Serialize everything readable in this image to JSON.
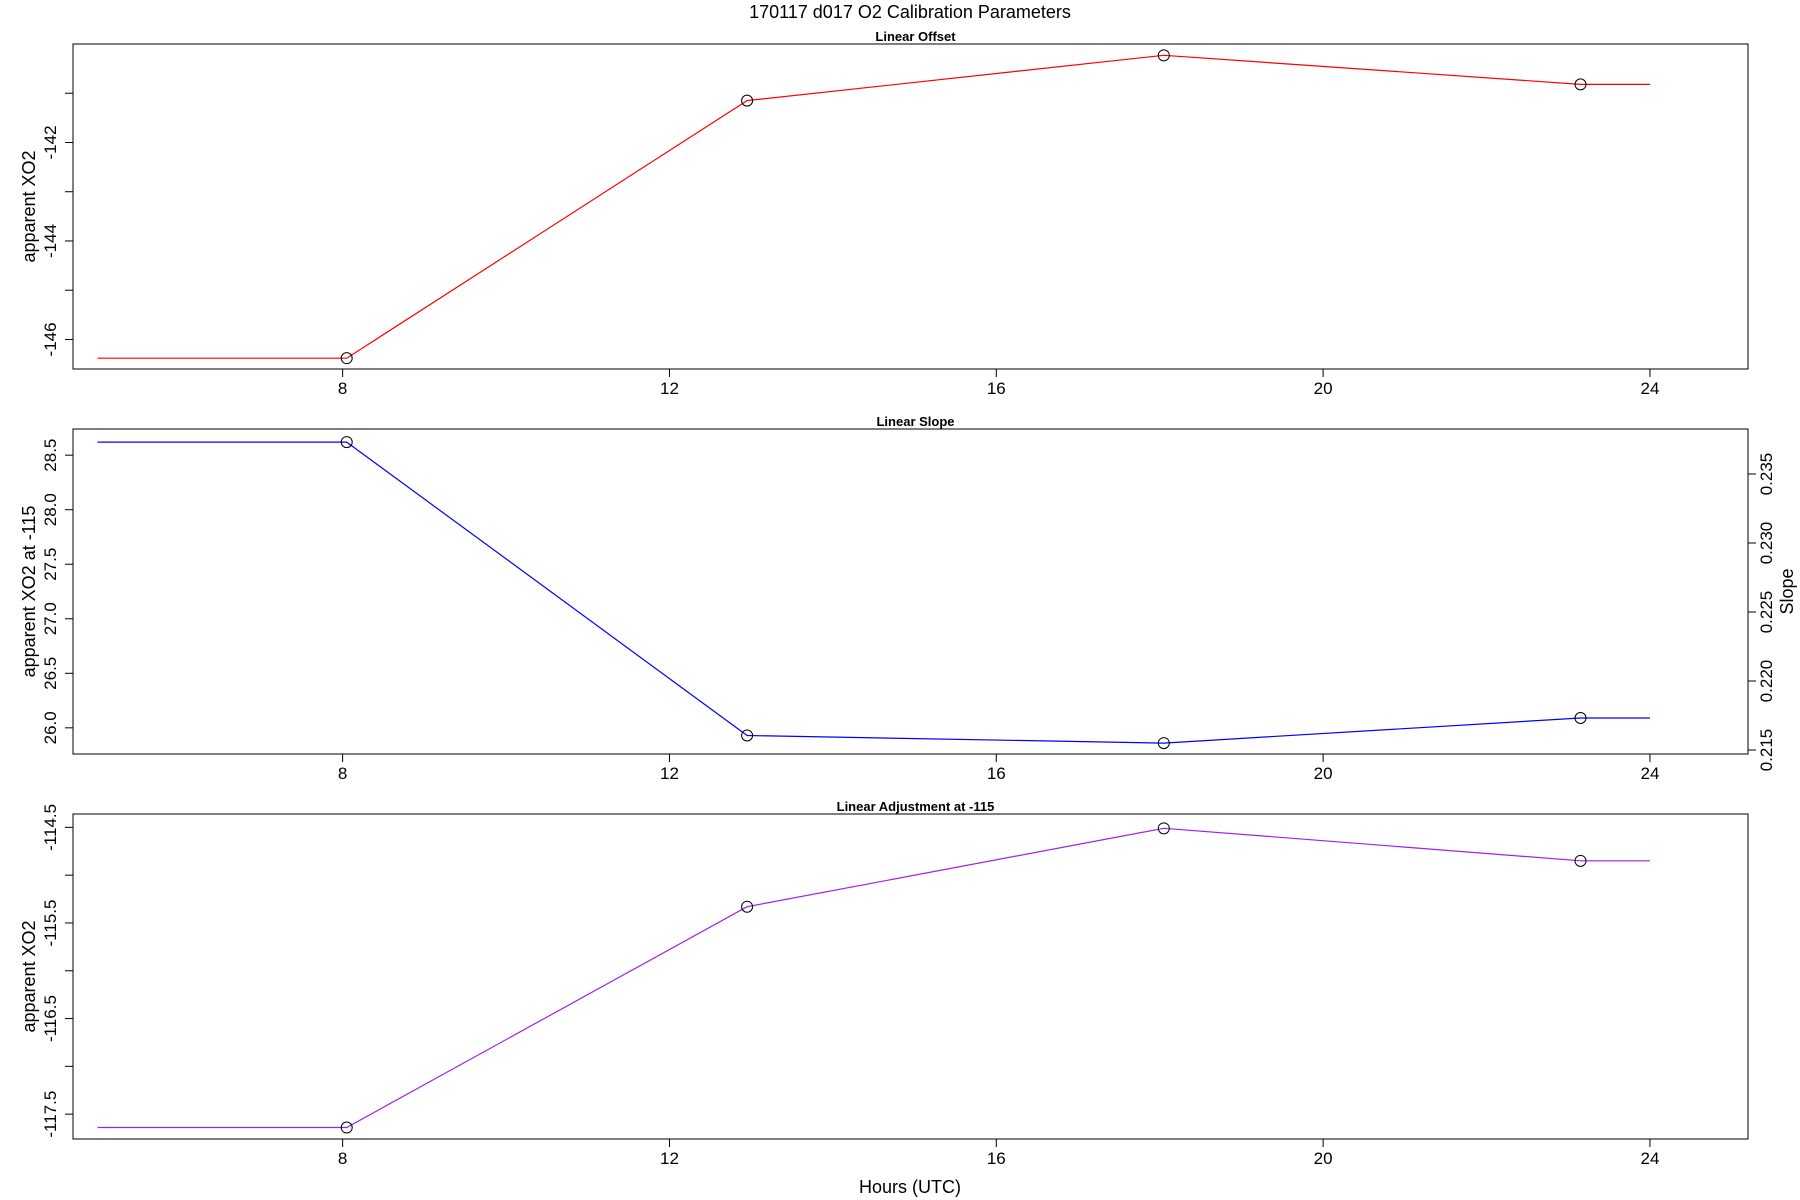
{
  "figure": {
    "title": "170117   d017   O2 Calibration Parameters",
    "xlabel": "Hours (UTC)"
  },
  "chart_data": [
    {
      "type": "line",
      "title": "Linear Offset",
      "xlabel": "",
      "ylabel": "apparent XO2",
      "color": "#ff0000",
      "x_ticks": [
        8,
        12,
        16,
        20,
        24
      ],
      "xlim": [
        4.7,
        25.2
      ],
      "y_ticks": [
        -146,
        -145,
        -144,
        -143,
        -142,
        -141
      ],
      "y_tick_labels": {
        "-146": "-146",
        "-144": "-144",
        "-142": "-142"
      },
      "ylim": [
        -146.6,
        -140.0
      ],
      "line_x": [
        5.0,
        8.05,
        12.95,
        18.05,
        23.15,
        24.0
      ],
      "line_y": [
        -146.38,
        -146.38,
        -141.15,
        -140.23,
        -140.82,
        -140.82
      ],
      "points_x": [
        8.05,
        12.95,
        18.05,
        23.15
      ],
      "points_y": [
        -146.38,
        -141.15,
        -140.23,
        -140.82
      ]
    },
    {
      "type": "line",
      "title": "Linear Slope",
      "xlabel": "",
      "ylabel": "apparent XO2 at -115",
      "ylabel_right": "Slope",
      "color": "#0000ff",
      "x_ticks": [
        8,
        12,
        16,
        20,
        24
      ],
      "xlim": [
        4.7,
        25.2
      ],
      "y_ticks": [
        26.0,
        26.5,
        27.0,
        27.5,
        28.0,
        28.5
      ],
      "y_tick_labels": {
        "26": "26.0",
        "26.5": "26.5",
        "27": "27.0",
        "27.5": "27.5",
        "28": "28.0",
        "28.5": "28.5"
      },
      "ylim": [
        25.76,
        28.74
      ],
      "y2_ticks": [
        0.215,
        0.22,
        0.225,
        0.23,
        0.235
      ],
      "y2_tick_labels": [
        "0.215",
        "0.220",
        "0.225",
        "0.230",
        "0.235"
      ],
      "line_x": [
        5.0,
        8.05,
        12.95,
        18.05,
        23.15,
        24.0
      ],
      "line_y": [
        28.62,
        28.62,
        25.93,
        25.86,
        26.09,
        26.09
      ],
      "points_x": [
        8.05,
        12.95,
        18.05,
        23.15
      ],
      "points_y": [
        28.62,
        25.93,
        25.86,
        26.09
      ]
    },
    {
      "type": "line",
      "title": "Linear Adjustment at -115",
      "xlabel": "",
      "ylabel": "apparent XO2",
      "color": "#a020f0",
      "x_ticks": [
        8,
        12,
        16,
        20,
        24
      ],
      "xlim": [
        4.7,
        25.2
      ],
      "y_ticks": [
        -117.5,
        -117.0,
        -116.5,
        -116.0,
        -115.5,
        -115.0,
        -114.5
      ],
      "y_tick_labels": {
        "-117.5": "-117.5",
        "-116.5": "-116.5",
        "-115.5": "-115.5",
        "-114.5": "-114.5"
      },
      "ylim": [
        -117.76,
        -114.36
      ],
      "line_x": [
        5.0,
        8.05,
        12.95,
        18.05,
        23.15,
        24.0
      ],
      "line_y": [
        -117.64,
        -117.64,
        -115.33,
        -114.51,
        -114.85,
        -114.85
      ],
      "points_x": [
        8.05,
        12.95,
        18.05,
        23.15
      ],
      "points_y": [
        -117.64,
        -115.33,
        -114.51,
        -114.85
      ]
    }
  ]
}
